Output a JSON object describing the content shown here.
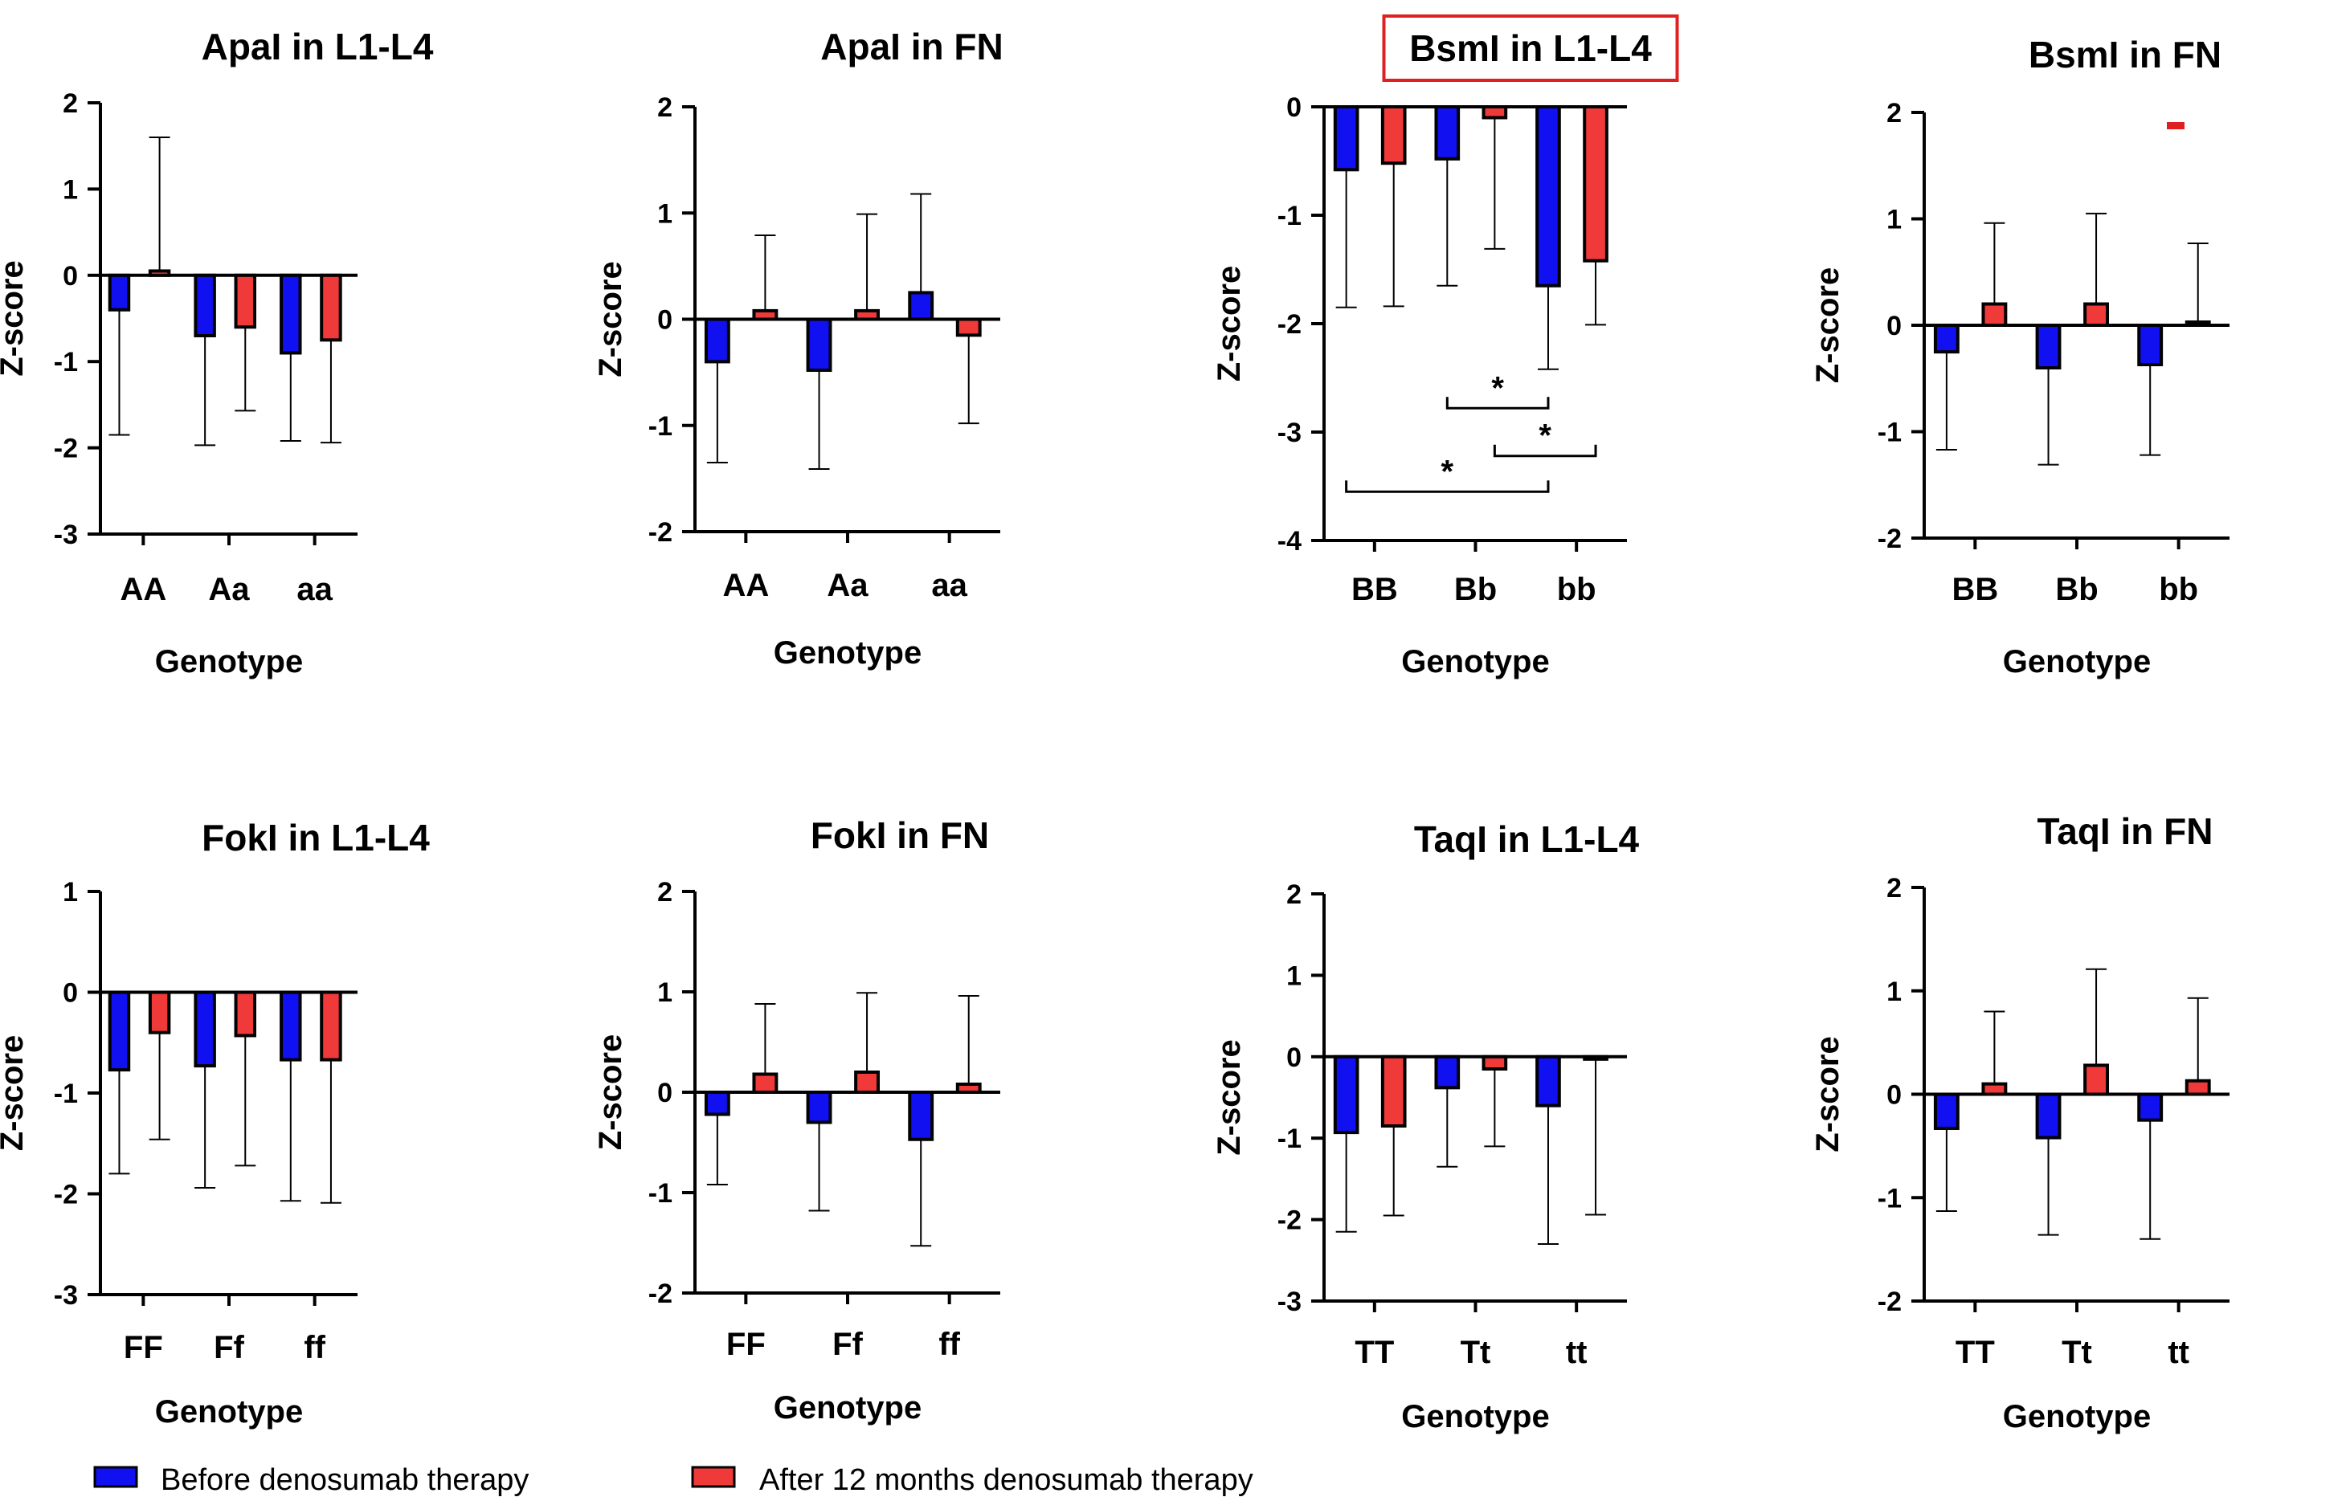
{
  "colors": {
    "before": "#1010f0",
    "after": "#f03a3a",
    "highlight": "#e02020"
  },
  "legend": {
    "before": "Before denosumab therapy",
    "after": "After 12 months denosumab therapy"
  },
  "chart_data": [
    {
      "type": "bar",
      "title": "ApaI in L1-L4",
      "highlighted": false,
      "xlabel": "Genotype",
      "ylabel": "Z-score",
      "ylim": [
        -3,
        2
      ],
      "yticks": [
        2,
        1,
        0,
        -1,
        -2,
        -3
      ],
      "categories": [
        "AA",
        "Aa",
        "aa"
      ],
      "series": [
        {
          "name": "Before denosumab therapy",
          "values": [
            -0.4,
            -0.7,
            -0.9
          ],
          "err": [
            1.45,
            1.27,
            1.02
          ]
        },
        {
          "name": "After 12 months denosumab therapy",
          "values": [
            0.05,
            -0.6,
            -0.75
          ],
          "err": [
            1.55,
            0.97,
            1.19
          ]
        }
      ]
    },
    {
      "type": "bar",
      "title": "ApaI in FN",
      "highlighted": false,
      "xlabel": "Genotype",
      "ylabel": "Z-score",
      "ylim": [
        -2,
        2
      ],
      "yticks": [
        2,
        1,
        0,
        -1,
        -2
      ],
      "categories": [
        "AA",
        "Aa",
        "aa"
      ],
      "series": [
        {
          "name": "Before denosumab therapy",
          "values": [
            -0.4,
            -0.48,
            0.25
          ],
          "err": [
            0.95,
            0.93,
            0.93
          ]
        },
        {
          "name": "After 12 months denosumab therapy",
          "values": [
            0.08,
            0.08,
            -0.15
          ],
          "err": [
            0.71,
            0.91,
            0.83
          ]
        }
      ]
    },
    {
      "type": "bar",
      "title": "BsmI in L1-L4",
      "highlighted": true,
      "xlabel": "Genotype",
      "ylabel": "Z-score",
      "ylim": [
        -4,
        0
      ],
      "yticks": [
        0,
        -1,
        -2,
        -3,
        -4
      ],
      "categories": [
        "BB",
        "Bb",
        "bb"
      ],
      "series": [
        {
          "name": "Before denosumab therapy",
          "values": [
            -0.58,
            -0.48,
            -1.65
          ],
          "err": [
            1.27,
            1.17,
            0.77
          ]
        },
        {
          "name": "After 12 months denosumab therapy",
          "values": [
            -0.52,
            -0.1,
            -1.42
          ],
          "err": [
            1.32,
            1.21,
            0.59
          ]
        }
      ],
      "significance": [
        {
          "from": "Bb before",
          "to": "bb before",
          "label": "*",
          "level": -2.78
        },
        {
          "from": "Bb after",
          "to": "bb after",
          "label": "*",
          "level": -3.22
        },
        {
          "from": "BB before",
          "to": "bb before",
          "label": "*",
          "level": -3.55
        }
      ]
    },
    {
      "type": "bar",
      "title": "BsmI in FN",
      "highlighted": false,
      "xlabel": "Genotype",
      "ylabel": "Z-score",
      "ylim": [
        -2,
        2
      ],
      "yticks": [
        2,
        1,
        0,
        -1,
        -2
      ],
      "categories": [
        "BB",
        "Bb",
        "bb"
      ],
      "series": [
        {
          "name": "Before denosumab therapy",
          "values": [
            -0.25,
            -0.4,
            -0.37
          ],
          "err": [
            0.92,
            0.91,
            0.85
          ]
        },
        {
          "name": "After 12 months denosumab therapy",
          "values": [
            0.2,
            0.2,
            0.03
          ],
          "err": [
            0.76,
            0.85,
            0.74
          ]
        }
      ]
    },
    {
      "type": "bar",
      "title": "FokI in L1-L4",
      "highlighted": false,
      "xlabel": "Genotype",
      "ylabel": "Z-score",
      "ylim": [
        -3,
        1
      ],
      "yticks": [
        1,
        0,
        -1,
        -2,
        -3
      ],
      "categories": [
        "FF",
        "Ff",
        "ff"
      ],
      "series": [
        {
          "name": "Before denosumab therapy",
          "values": [
            -0.77,
            -0.73,
            -0.67
          ],
          "err": [
            1.03,
            1.21,
            1.4
          ]
        },
        {
          "name": "After 12 months denosumab therapy",
          "values": [
            -0.4,
            -0.43,
            -0.67
          ],
          "err": [
            1.06,
            1.29,
            1.42
          ]
        }
      ]
    },
    {
      "type": "bar",
      "title": "FokI in FN",
      "highlighted": false,
      "xlabel": "Genotype",
      "ylabel": "Z-score",
      "ylim": [
        -2,
        2
      ],
      "yticks": [
        2,
        1,
        0,
        -1,
        -2
      ],
      "categories": [
        "FF",
        "Ff",
        "ff"
      ],
      "series": [
        {
          "name": "Before denosumab therapy",
          "values": [
            -0.22,
            -0.3,
            -0.47
          ],
          "err": [
            0.7,
            0.88,
            1.06
          ]
        },
        {
          "name": "After 12 months denosumab therapy",
          "values": [
            0.18,
            0.2,
            0.08
          ],
          "err": [
            0.7,
            0.79,
            0.88
          ]
        }
      ]
    },
    {
      "type": "bar",
      "title": "TaqI in L1-L4",
      "highlighted": false,
      "xlabel": "Genotype",
      "ylabel": "Z-score",
      "ylim": [
        -3,
        2
      ],
      "yticks": [
        2,
        1,
        0,
        -1,
        -2,
        -3
      ],
      "categories": [
        "TT",
        "Tt",
        "tt"
      ],
      "series": [
        {
          "name": "Before denosumab therapy",
          "values": [
            -0.93,
            -0.38,
            -0.6
          ],
          "err": [
            1.22,
            0.97,
            1.7
          ]
        },
        {
          "name": "After 12 months denosumab therapy",
          "values": [
            -0.85,
            -0.15,
            -0.02
          ],
          "err": [
            1.1,
            0.95,
            1.92
          ]
        }
      ]
    },
    {
      "type": "bar",
      "title": "TaqI in FN",
      "highlighted": false,
      "xlabel": "Genotype",
      "ylabel": "Z-score",
      "ylim": [
        -2,
        2
      ],
      "yticks": [
        2,
        1,
        0,
        -1,
        -2
      ],
      "categories": [
        "TT",
        "Tt",
        "tt"
      ],
      "series": [
        {
          "name": "Before denosumab therapy",
          "values": [
            -0.33,
            -0.42,
            -0.25
          ],
          "err": [
            0.8,
            0.94,
            1.15
          ]
        },
        {
          "name": "After 12 months denosumab therapy",
          "values": [
            0.1,
            0.28,
            0.13
          ],
          "err": [
            0.7,
            0.93,
            0.8
          ]
        }
      ]
    }
  ]
}
